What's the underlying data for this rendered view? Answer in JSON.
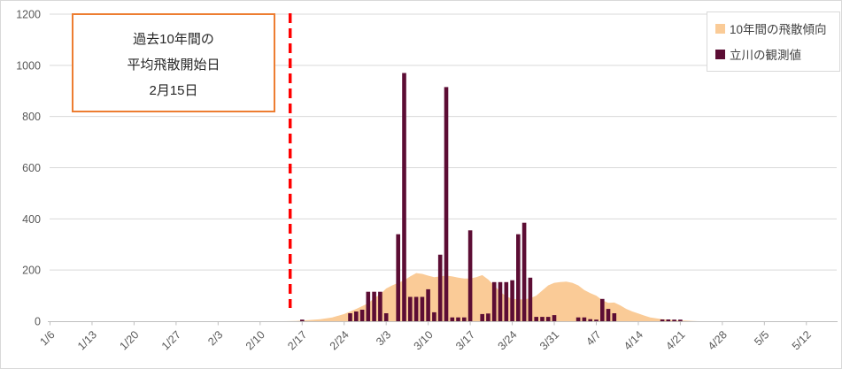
{
  "annotation": {
    "lines": [
      "過去10年間の",
      "平均飛散開始日",
      "2月15日"
    ],
    "border_color": "#ed7d31"
  },
  "legend": {
    "items": [
      {
        "label": "10年間の飛散傾向",
        "color": "#facb97"
      },
      {
        "label": "立川の観測値",
        "color": "#5c0d34"
      }
    ]
  },
  "chart_data": {
    "type": "area+bar combo, daily pollen counts",
    "title": "",
    "xlabel": "",
    "ylabel": "",
    "y_axis": {
      "min": 0,
      "max": 1200,
      "step": 200,
      "tick_labels": [
        "0",
        "200",
        "400",
        "600",
        "800",
        "1000",
        "1200"
      ]
    },
    "x_axis": {
      "tick_labels": [
        "1/6",
        "1/13",
        "1/20",
        "1/27",
        "2/3",
        "2/10",
        "2/17",
        "2/24",
        "3/3",
        "3/10",
        "3/17",
        "3/24",
        "3/31",
        "4/7",
        "4/14",
        "4/21",
        "4/28",
        "5/5",
        "5/12"
      ]
    },
    "grid": "horizontal",
    "gridline_color": "#d9d9d9",
    "axis_line_color": "#bfbfbf",
    "reference_line": {
      "date": "2/15",
      "color": "#ff0000",
      "style": "dashed",
      "meaning": "平均飛散開始日"
    },
    "series": [
      {
        "name": "10年間の飛散傾向",
        "type": "area",
        "color": "#facb97",
        "points": [
          [
            "2/14",
            0
          ],
          [
            "2/16",
            1
          ],
          [
            "2/18",
            4
          ],
          [
            "2/20",
            8
          ],
          [
            "2/22",
            15
          ],
          [
            "2/24",
            28
          ],
          [
            "2/26",
            48
          ],
          [
            "2/28",
            70
          ],
          [
            "3/1",
            90
          ],
          [
            "3/2",
            105
          ],
          [
            "3/3",
            128
          ],
          [
            "3/4",
            140
          ],
          [
            "3/5",
            150
          ],
          [
            "3/6",
            160
          ],
          [
            "3/7",
            175
          ],
          [
            "3/8",
            188
          ],
          [
            "3/9",
            185
          ],
          [
            "3/10",
            178
          ],
          [
            "3/11",
            172
          ],
          [
            "3/12",
            175
          ],
          [
            "3/13",
            178
          ],
          [
            "3/14",
            175
          ],
          [
            "3/15",
            170
          ],
          [
            "3/16",
            167
          ],
          [
            "3/17",
            167
          ],
          [
            "3/18",
            172
          ],
          [
            "3/19",
            180
          ],
          [
            "3/20",
            163
          ],
          [
            "3/21",
            140
          ],
          [
            "3/22",
            115
          ],
          [
            "3/23",
            97
          ],
          [
            "3/24",
            88
          ],
          [
            "3/25",
            85
          ],
          [
            "3/26",
            85
          ],
          [
            "3/27",
            90
          ],
          [
            "3/28",
            100
          ],
          [
            "3/29",
            120
          ],
          [
            "3/30",
            140
          ],
          [
            "3/31",
            150
          ],
          [
            "4/1",
            153
          ],
          [
            "4/2",
            155
          ],
          [
            "4/3",
            150
          ],
          [
            "4/4",
            140
          ],
          [
            "4/5",
            122
          ],
          [
            "4/6",
            110
          ],
          [
            "4/7",
            100
          ],
          [
            "4/8",
            82
          ],
          [
            "4/9",
            72
          ],
          [
            "4/10",
            73
          ],
          [
            "4/11",
            62
          ],
          [
            "4/12",
            48
          ],
          [
            "4/13",
            38
          ],
          [
            "4/14",
            30
          ],
          [
            "4/15",
            22
          ],
          [
            "4/16",
            15
          ],
          [
            "4/17",
            11
          ],
          [
            "4/18",
            8
          ],
          [
            "4/19",
            6
          ],
          [
            "4/20",
            4
          ],
          [
            "4/21",
            3
          ],
          [
            "4/22",
            2
          ],
          [
            "4/23",
            1
          ],
          [
            "4/24",
            0
          ]
        ]
      },
      {
        "name": "立川の観測値",
        "type": "bar",
        "color": "#5c0d34",
        "points": [
          [
            "2/17",
            4
          ],
          [
            "2/25",
            31
          ],
          [
            "2/26",
            38
          ],
          [
            "2/27",
            45
          ],
          [
            "2/28",
            115
          ],
          [
            "3/1",
            115
          ],
          [
            "3/2",
            115
          ],
          [
            "3/3",
            31
          ],
          [
            "3/5",
            340
          ],
          [
            "3/6",
            970
          ],
          [
            "3/7",
            95
          ],
          [
            "3/8",
            95
          ],
          [
            "3/9",
            95
          ],
          [
            "3/10",
            125
          ],
          [
            "3/11",
            35
          ],
          [
            "3/12",
            260
          ],
          [
            "3/13",
            915
          ],
          [
            "3/14",
            15
          ],
          [
            "3/15",
            15
          ],
          [
            "3/16",
            15
          ],
          [
            "3/17",
            355
          ],
          [
            "3/19",
            28
          ],
          [
            "3/20",
            30
          ],
          [
            "3/21",
            153
          ],
          [
            "3/22",
            153
          ],
          [
            "3/23",
            153
          ],
          [
            "3/24",
            160
          ],
          [
            "3/25",
            340
          ],
          [
            "3/26",
            385
          ],
          [
            "3/27",
            170
          ],
          [
            "3/28",
            17
          ],
          [
            "3/29",
            17
          ],
          [
            "3/30",
            17
          ],
          [
            "3/31",
            24
          ],
          [
            "4/4",
            15
          ],
          [
            "4/5",
            15
          ],
          [
            "4/6",
            8
          ],
          [
            "4/7",
            4
          ],
          [
            "4/8",
            87
          ],
          [
            "4/9",
            48
          ],
          [
            "4/10",
            31
          ],
          [
            "4/18",
            7
          ],
          [
            "4/19",
            7
          ],
          [
            "4/20",
            5
          ],
          [
            "4/21",
            3
          ]
        ]
      }
    ],
    "legend_position": "top-right"
  }
}
